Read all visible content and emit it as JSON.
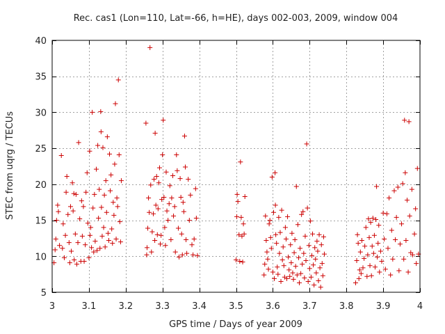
{
  "chart_data": {
    "type": "scatter",
    "title": "Rec. cas1 (Lon=110, Lat=-66, h=HE), days 002-003, 2009, window 004",
    "xlabel": "GPS time / Days of year 2009",
    "ylabel": "STEC from uqrg / TECUs",
    "xlim": [
      3.0,
      4.0
    ],
    "ylim": [
      5,
      40
    ],
    "xticks": [
      3,
      3.1,
      3.2,
      3.3,
      3.4,
      3.5,
      3.6,
      3.7,
      3.8,
      3.9,
      4
    ],
    "xtick_labels": [
      "3",
      "3.1",
      "3.2",
      "3.3",
      "3.4",
      "3.5",
      "3.6",
      "3.7",
      "3.8",
      "3.9",
      "4"
    ],
    "yticks": [
      5,
      10,
      15,
      20,
      25,
      30,
      35,
      40
    ],
    "ytick_labels": [
      "5",
      "10",
      "15",
      "20",
      "25",
      "30",
      "35",
      "40"
    ],
    "grid": true,
    "marker": "plus",
    "marker_color": "#cc0000",
    "series": [
      {
        "name": "STEC",
        "points": [
          [
            3.005,
            9.1
          ],
          [
            3.008,
            10.9
          ],
          [
            3.01,
            12.4
          ],
          [
            3.012,
            15.0
          ],
          [
            3.015,
            17.1
          ],
          [
            3.017,
            16.2
          ],
          [
            3.02,
            11.5
          ],
          [
            3.025,
            24.0
          ],
          [
            3.028,
            11.1
          ],
          [
            3.03,
            14.5
          ],
          [
            3.033,
            9.8
          ],
          [
            3.036,
            12.9
          ],
          [
            3.038,
            18.9
          ],
          [
            3.04,
            21.1
          ],
          [
            3.043,
            15.8
          ],
          [
            3.046,
            11.9
          ],
          [
            3.048,
            9.1
          ],
          [
            3.05,
            16.9
          ],
          [
            3.052,
            10.7
          ],
          [
            3.055,
            20.2
          ],
          [
            3.057,
            16.3
          ],
          [
            3.059,
            18.7
          ],
          [
            3.06,
            9.5
          ],
          [
            3.063,
            13.1
          ],
          [
            3.065,
            18.6
          ],
          [
            3.067,
            8.9
          ],
          [
            3.07,
            11.9
          ],
          [
            3.072,
            25.8
          ],
          [
            3.075,
            15.2
          ],
          [
            3.078,
            9.3
          ],
          [
            3.08,
            17.7
          ],
          [
            3.082,
            12.8
          ],
          [
            3.085,
            16.9
          ],
          [
            3.087,
            9.3
          ],
          [
            3.09,
            11.6
          ],
          [
            3.092,
            18.9
          ],
          [
            3.095,
            21.6
          ],
          [
            3.097,
            14.6
          ],
          [
            3.1,
            9.8
          ],
          [
            3.102,
            24.6
          ],
          [
            3.103,
            12.9
          ],
          [
            3.105,
            14.0
          ],
          [
            3.107,
            11.2
          ],
          [
            3.109,
            30.0
          ],
          [
            3.111,
            16.7
          ],
          [
            3.113,
            10.6
          ],
          [
            3.115,
            18.6
          ],
          [
            3.117,
            12.1
          ],
          [
            3.12,
            22.1
          ],
          [
            3.122,
            10.8
          ],
          [
            3.124,
            25.4
          ],
          [
            3.126,
            15.3
          ],
          [
            3.128,
            19.3
          ],
          [
            3.13,
            11.1
          ],
          [
            3.132,
            30.1
          ],
          [
            3.133,
            27.3
          ],
          [
            3.134,
            16.8
          ],
          [
            3.136,
            12.8
          ],
          [
            3.138,
            25.1
          ],
          [
            3.14,
            14.0
          ],
          [
            3.142,
            18.5
          ],
          [
            3.144,
            11.3
          ],
          [
            3.146,
            20.5
          ],
          [
            3.148,
            16.1
          ],
          [
            3.15,
            26.6
          ],
          [
            3.152,
            13.2
          ],
          [
            3.154,
            12.2
          ],
          [
            3.156,
            24.2
          ],
          [
            3.158,
            19.1
          ],
          [
            3.16,
            21.3
          ],
          [
            3.162,
            13.8
          ],
          [
            3.164,
            11.8
          ],
          [
            3.166,
            17.5
          ],
          [
            3.168,
            15.7
          ],
          [
            3.17,
            22.8
          ],
          [
            3.172,
            31.2
          ],
          [
            3.174,
            12.4
          ],
          [
            3.176,
            18.1
          ],
          [
            3.178,
            16.9
          ],
          [
            3.18,
            34.5
          ],
          [
            3.182,
            24.1
          ],
          [
            3.184,
            14.8
          ],
          [
            3.186,
            12.0
          ],
          [
            3.188,
            20.5
          ],
          [
            3.255,
            28.5
          ],
          [
            3.257,
            10.2
          ],
          [
            3.258,
            11.2
          ],
          [
            3.26,
            13.9
          ],
          [
            3.262,
            18.1
          ],
          [
            3.264,
            16.1
          ],
          [
            3.266,
            39.0
          ],
          [
            3.268,
            19.9
          ],
          [
            3.27,
            10.6
          ],
          [
            3.272,
            13.4
          ],
          [
            3.275,
            15.9
          ],
          [
            3.277,
            20.7
          ],
          [
            3.279,
            12.2
          ],
          [
            3.28,
            27.1
          ],
          [
            3.282,
            17.1
          ],
          [
            3.284,
            21.1
          ],
          [
            3.286,
            13.0
          ],
          [
            3.288,
            16.6
          ],
          [
            3.29,
            20.2
          ],
          [
            3.292,
            22.3
          ],
          [
            3.294,
            11.7
          ],
          [
            3.296,
            12.9
          ],
          [
            3.298,
            17.9
          ],
          [
            3.3,
            24.1
          ],
          [
            3.302,
            28.9
          ],
          [
            3.304,
            18.2
          ],
          [
            3.306,
            14.0
          ],
          [
            3.308,
            11.5
          ],
          [
            3.31,
            21.7
          ],
          [
            3.312,
            16.3
          ],
          [
            3.315,
            15.0
          ],
          [
            3.318,
            17.3
          ],
          [
            3.32,
            19.8
          ],
          [
            3.323,
            12.3
          ],
          [
            3.325,
            18.1
          ],
          [
            3.328,
            21.2
          ],
          [
            3.33,
            15.6
          ],
          [
            3.333,
            16.9
          ],
          [
            3.335,
            10.6
          ],
          [
            3.338,
            24.1
          ],
          [
            3.34,
            21.9
          ],
          [
            3.343,
            13.9
          ],
          [
            3.345,
            9.9
          ],
          [
            3.348,
            20.8
          ],
          [
            3.35,
            18.2
          ],
          [
            3.352,
            13.1
          ],
          [
            3.354,
            10.2
          ],
          [
            3.356,
            17.5
          ],
          [
            3.358,
            16.2
          ],
          [
            3.36,
            26.7
          ],
          [
            3.362,
            22.4
          ],
          [
            3.364,
            12.3
          ],
          [
            3.366,
            10.4
          ],
          [
            3.37,
            20.7
          ],
          [
            3.373,
            15.0
          ],
          [
            3.376,
            18.5
          ],
          [
            3.38,
            11.6
          ],
          [
            3.383,
            10.2
          ],
          [
            3.386,
            12.4
          ],
          [
            3.39,
            19.4
          ],
          [
            3.392,
            15.3
          ],
          [
            3.395,
            10.1
          ],
          [
            3.5,
            9.5
          ],
          [
            3.502,
            15.5
          ],
          [
            3.503,
            18.6
          ],
          [
            3.505,
            17.6
          ],
          [
            3.508,
            13.0
          ],
          [
            3.51,
            9.3
          ],
          [
            3.512,
            23.1
          ],
          [
            3.514,
            15.4
          ],
          [
            3.516,
            12.8
          ],
          [
            3.518,
            9.2
          ],
          [
            3.52,
            14.5
          ],
          [
            3.522,
            13.1
          ],
          [
            3.524,
            18.3
          ],
          [
            3.576,
            7.4
          ],
          [
            3.578,
            8.9
          ],
          [
            3.58,
            15.6
          ],
          [
            3.582,
            12.2
          ],
          [
            3.584,
            10.6
          ],
          [
            3.586,
            9.6
          ],
          [
            3.588,
            8.2
          ],
          [
            3.59,
            14.5
          ],
          [
            3.592,
            15.0
          ],
          [
            3.594,
            12.6
          ],
          [
            3.596,
            11.1
          ],
          [
            3.598,
            21.0
          ],
          [
            3.6,
            7.8
          ],
          [
            3.602,
            16.1
          ],
          [
            3.604,
            6.9
          ],
          [
            3.606,
            21.6
          ],
          [
            3.607,
            17.1
          ],
          [
            3.608,
            13.0
          ],
          [
            3.61,
            11.8
          ],
          [
            3.612,
            8.5
          ],
          [
            3.614,
            7.5
          ],
          [
            3.616,
            15.4
          ],
          [
            3.618,
            10.4
          ],
          [
            3.62,
            13.3
          ],
          [
            3.622,
            6.5
          ],
          [
            3.624,
            16.4
          ],
          [
            3.626,
            9.5
          ],
          [
            3.628,
            11.3
          ],
          [
            3.63,
            8.7
          ],
          [
            3.632,
            7.1
          ],
          [
            3.634,
            14.0
          ],
          [
            3.636,
            12.4
          ],
          [
            3.638,
            6.9
          ],
          [
            3.64,
            15.5
          ],
          [
            3.642,
            9.9
          ],
          [
            3.644,
            8.1
          ],
          [
            3.646,
            7.2
          ],
          [
            3.648,
            11.6
          ],
          [
            3.65,
            9.1
          ],
          [
            3.652,
            13.2
          ],
          [
            3.654,
            7.7
          ],
          [
            3.656,
            6.8
          ],
          [
            3.658,
            10.5
          ],
          [
            3.66,
            12.3
          ],
          [
            3.662,
            8.6
          ],
          [
            3.664,
            19.7
          ],
          [
            3.666,
            7.4
          ],
          [
            3.668,
            14.4
          ],
          [
            3.67,
            9.8
          ],
          [
            3.672,
            6.3
          ],
          [
            3.674,
            11.1
          ],
          [
            3.676,
            7.6
          ],
          [
            3.678,
            15.8
          ],
          [
            3.68,
            8.9
          ],
          [
            3.682,
            16.2
          ],
          [
            3.684,
            10.4
          ],
          [
            3.686,
            7.0
          ],
          [
            3.688,
            12.8
          ],
          [
            3.69,
            9.4
          ],
          [
            3.692,
            25.6
          ],
          [
            3.694,
            16.7
          ],
          [
            3.696,
            6.5
          ],
          [
            3.698,
            11.5
          ],
          [
            3.7,
            8.3
          ],
          [
            3.702,
            14.9
          ],
          [
            3.704,
            7.1
          ],
          [
            3.706,
            10.1
          ],
          [
            3.708,
            13.1
          ],
          [
            3.71,
            8.8
          ],
          [
            3.712,
            6.0
          ],
          [
            3.714,
            11.2
          ],
          [
            3.716,
            9.6
          ],
          [
            3.718,
            7.7
          ],
          [
            3.72,
            12.1
          ],
          [
            3.722,
            10.7
          ],
          [
            3.724,
            6.6
          ],
          [
            3.726,
            13.0
          ],
          [
            3.728,
            8.4
          ],
          [
            3.73,
            5.7
          ],
          [
            3.732,
            11.6
          ],
          [
            3.734,
            9.0
          ],
          [
            3.736,
            7.3
          ],
          [
            3.738,
            12.7
          ],
          [
            3.74,
            10.3
          ],
          [
            3.825,
            6.3
          ],
          [
            3.828,
            9.4
          ],
          [
            3.83,
            13.0
          ],
          [
            3.832,
            11.8
          ],
          [
            3.834,
            6.9
          ],
          [
            3.836,
            8.1
          ],
          [
            3.838,
            10.6
          ],
          [
            3.84,
            7.6
          ],
          [
            3.842,
            12.2
          ],
          [
            3.845,
            8.4
          ],
          [
            3.848,
            9.7
          ],
          [
            3.85,
            11.4
          ],
          [
            3.853,
            14.0
          ],
          [
            3.856,
            7.2
          ],
          [
            3.858,
            10.2
          ],
          [
            3.86,
            15.2
          ],
          [
            3.862,
            12.6
          ],
          [
            3.864,
            8.7
          ],
          [
            3.866,
            14.7
          ],
          [
            3.868,
            7.3
          ],
          [
            3.87,
            11.4
          ],
          [
            3.872,
            15.3
          ],
          [
            3.874,
            10.4
          ],
          [
            3.876,
            12.9
          ],
          [
            3.878,
            8.5
          ],
          [
            3.88,
            15.1
          ],
          [
            3.882,
            19.7
          ],
          [
            3.884,
            9.9
          ],
          [
            3.886,
            11.8
          ],
          [
            3.888,
            14.3
          ],
          [
            3.89,
            7.8
          ],
          [
            3.893,
            10.7
          ],
          [
            3.896,
            9.3
          ],
          [
            3.9,
            16.0
          ],
          [
            3.903,
            12.4
          ],
          [
            3.906,
            8.2
          ],
          [
            3.91,
            15.9
          ],
          [
            3.913,
            11.1
          ],
          [
            3.916,
            18.1
          ],
          [
            3.92,
            7.4
          ],
          [
            3.923,
            13.6
          ],
          [
            3.926,
            9.6
          ],
          [
            3.93,
            19.1
          ],
          [
            3.933,
            12.3
          ],
          [
            3.936,
            15.4
          ],
          [
            3.94,
            19.6
          ],
          [
            3.943,
            8.0
          ],
          [
            3.946,
            11.7
          ],
          [
            3.95,
            14.5
          ],
          [
            3.953,
            20.1
          ],
          [
            3.956,
            9.6
          ],
          [
            3.958,
            28.9
          ],
          [
            3.96,
            21.6
          ],
          [
            3.962,
            12.2
          ],
          [
            3.965,
            17.8
          ],
          [
            3.968,
            7.8
          ],
          [
            3.97,
            28.7
          ],
          [
            3.972,
            15.6
          ],
          [
            3.975,
            10.5
          ],
          [
            3.978,
            19.3
          ],
          [
            3.98,
            10.2
          ],
          [
            3.985,
            13.1
          ],
          [
            3.988,
            16.6
          ],
          [
            3.99,
            9.0
          ],
          [
            3.993,
            22.2
          ],
          [
            3.996,
            10.3
          ]
        ]
      }
    ]
  }
}
